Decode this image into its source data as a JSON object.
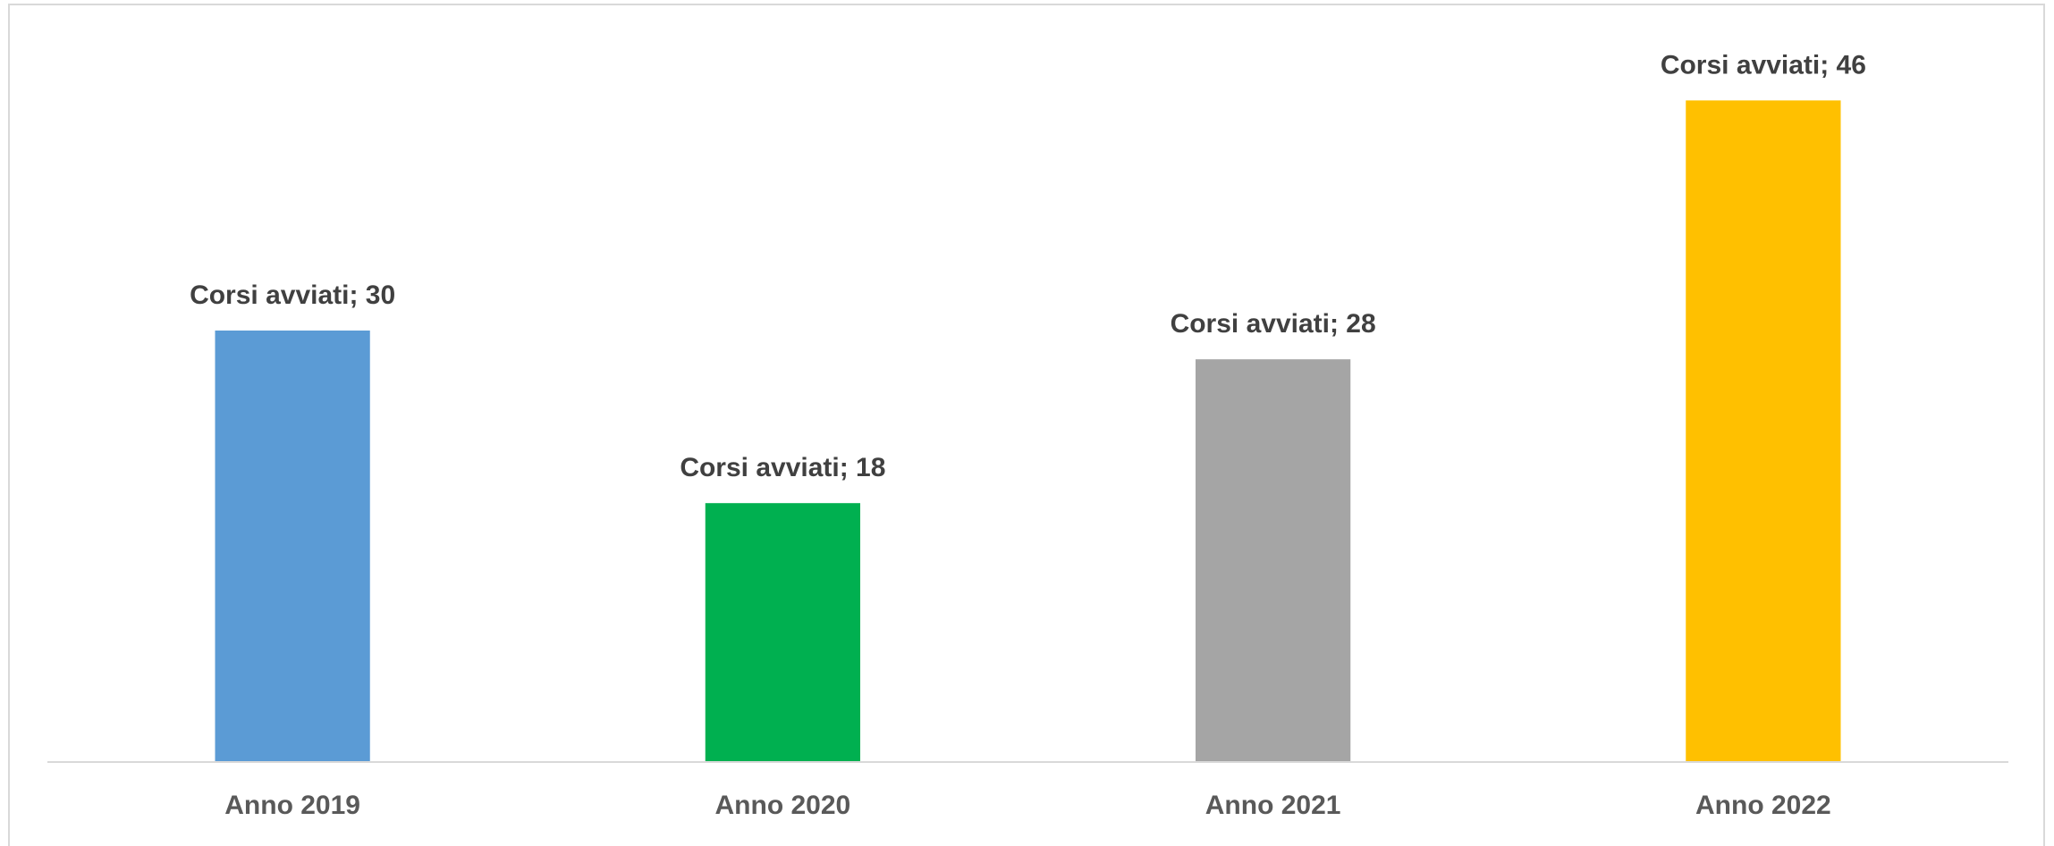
{
  "chart_data": {
    "type": "bar",
    "categories": [
      "Anno 2019",
      "Anno 2020",
      "Anno 2021",
      "Anno 2022"
    ],
    "values": [
      30,
      18,
      28,
      46
    ],
    "value_labels": [
      "Corsi avviati; 30",
      "Corsi avviati; 18",
      "Corsi avviati; 28",
      "Corsi avviati; 46"
    ],
    "colors": [
      "#5b9bd5",
      "#00b050",
      "#a5a5a5",
      "#ffc000"
    ],
    "ylim": [
      0,
      50
    ]
  }
}
